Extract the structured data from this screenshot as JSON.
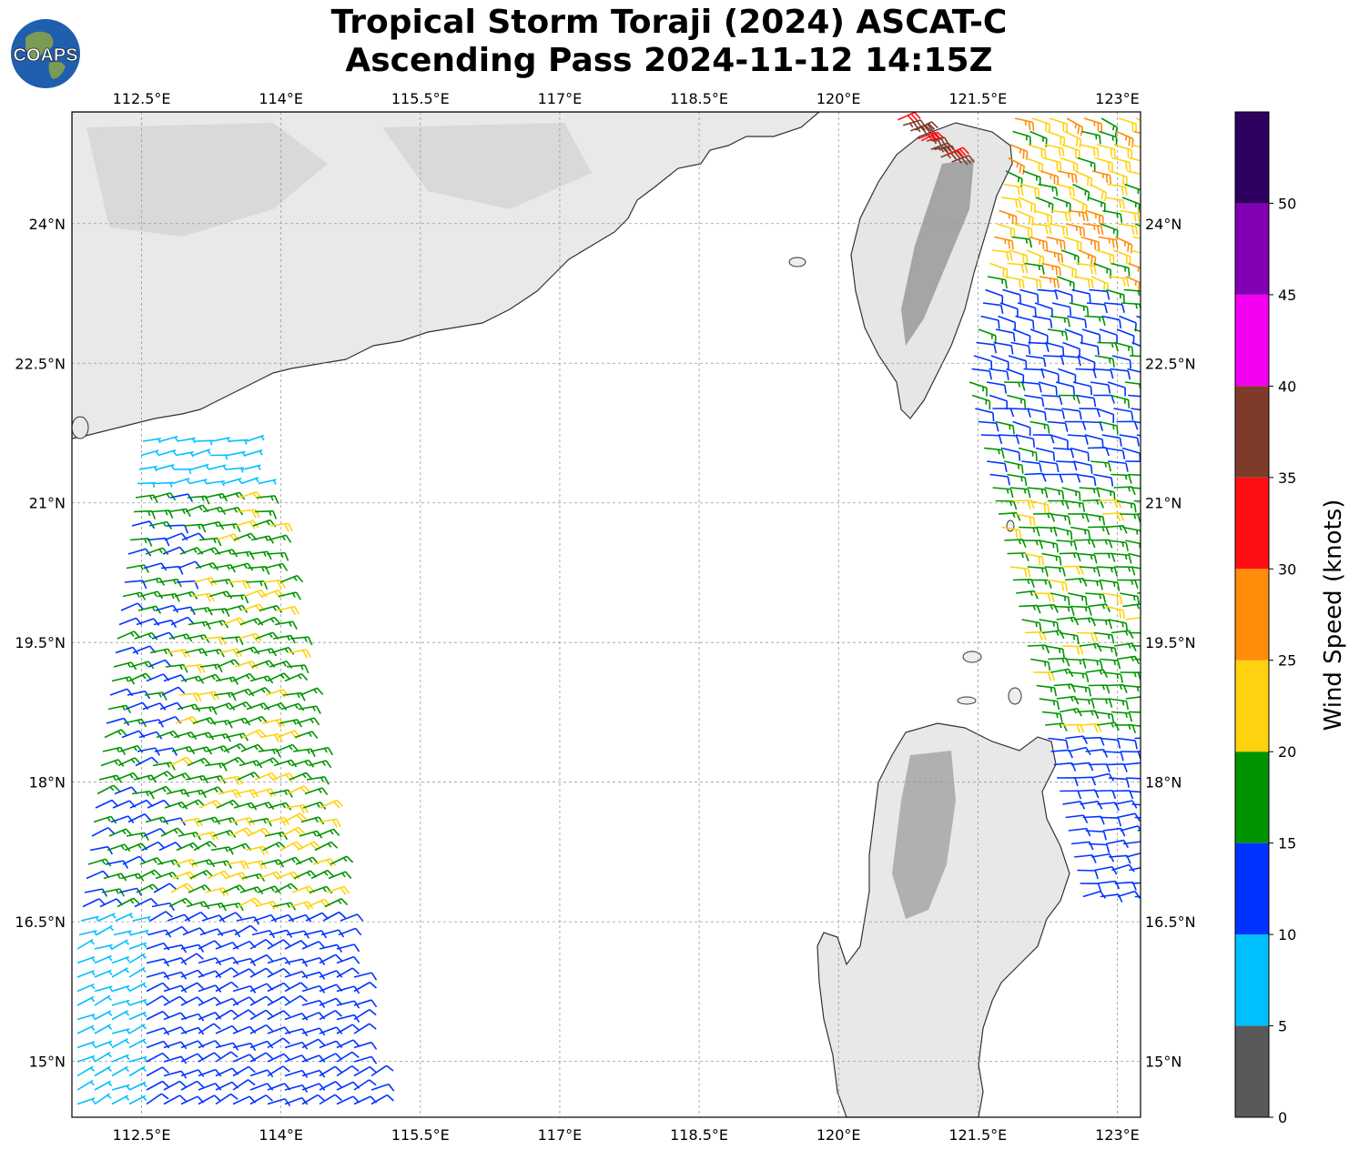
{
  "header": {
    "title_line1": "Tropical Storm Toraji (2024) ASCAT-C",
    "title_line2": "Ascending Pass 2024-11-12 14:15Z",
    "logo_text": "COAPS"
  },
  "map": {
    "lon_ticks": [
      "112.5°E",
      "114°E",
      "115.5°E",
      "117°E",
      "118.5°E",
      "120°E",
      "121.5°E",
      "123°E"
    ],
    "lat_ticks": [
      "24°N",
      "22.5°N",
      "21°N",
      "19.5°N",
      "18°N",
      "16.5°N",
      "15°N"
    ],
    "lon_range": [
      111.75,
      123.25
    ],
    "lat_range": [
      14.4,
      25.2
    ],
    "grid": true,
    "land_shading": "grayscale terrain",
    "coastline_color": "#333333"
  },
  "colorbar": {
    "label": "Wind Speed (knots)",
    "ticks": [
      "0",
      "5",
      "10",
      "15",
      "20",
      "25",
      "30",
      "35",
      "40",
      "45",
      "50"
    ],
    "bins": [
      {
        "min": 0,
        "max": 5,
        "color": "#595959"
      },
      {
        "min": 5,
        "max": 10,
        "color": "#00bfff"
      },
      {
        "min": 10,
        "max": 15,
        "color": "#0033ff"
      },
      {
        "min": 15,
        "max": 20,
        "color": "#009400"
      },
      {
        "min": 20,
        "max": 25,
        "color": "#ffd20f"
      },
      {
        "min": 25,
        "max": 30,
        "color": "#ff8c0a"
      },
      {
        "min": 30,
        "max": 35,
        "color": "#ff0f14"
      },
      {
        "min": 35,
        "max": 40,
        "color": "#7f3b2a"
      },
      {
        "min": 40,
        "max": 45,
        "color": "#f400f0"
      },
      {
        "min": 45,
        "max": 50,
        "color": "#8100b3"
      },
      {
        "min": 50,
        "max": 55,
        "color": "#2e0060"
      }
    ]
  }
}
